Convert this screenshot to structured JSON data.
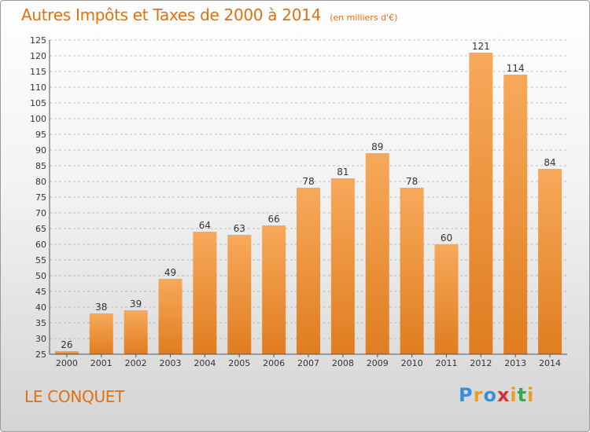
{
  "title": "Autres Impôts et Taxes de 2000 à 2014",
  "subtitle": "(en milliers d'€)",
  "town": "LE CONQUET",
  "logo": {
    "text": "Proxiti",
    "letters": [
      {
        "ch": "P",
        "color": "#3a8fd8"
      },
      {
        "ch": "r",
        "color": "#e8a020"
      },
      {
        "ch": "o",
        "color": "#3a8fd8"
      },
      {
        "ch": "x",
        "color": "#d83030"
      },
      {
        "ch": "i",
        "color": "#e8a020"
      },
      {
        "ch": "t",
        "color": "#3aa84a"
      },
      {
        "ch": "i",
        "color": "#e8a020"
      }
    ]
  },
  "colors": {
    "accent": "#e07010",
    "bar_top": "#f7a95a",
    "bar_bottom": "#e07d20",
    "grid": "#8a8a8a"
  },
  "chart_data": {
    "type": "bar",
    "categories": [
      "2000",
      "2001",
      "2002",
      "2003",
      "2004",
      "2005",
      "2006",
      "2007",
      "2008",
      "2009",
      "2010",
      "2011",
      "2012",
      "2013",
      "2014"
    ],
    "values": [
      26,
      38,
      39,
      49,
      64,
      63,
      66,
      78,
      81,
      89,
      78,
      60,
      121,
      114,
      84
    ],
    "ylim": [
      25,
      125
    ],
    "yticks": [
      25,
      30,
      35,
      40,
      45,
      50,
      55,
      60,
      65,
      70,
      75,
      80,
      85,
      90,
      95,
      100,
      105,
      110,
      115,
      120,
      125
    ],
    "grid": "horizontal dashed",
    "data_labels": true
  }
}
